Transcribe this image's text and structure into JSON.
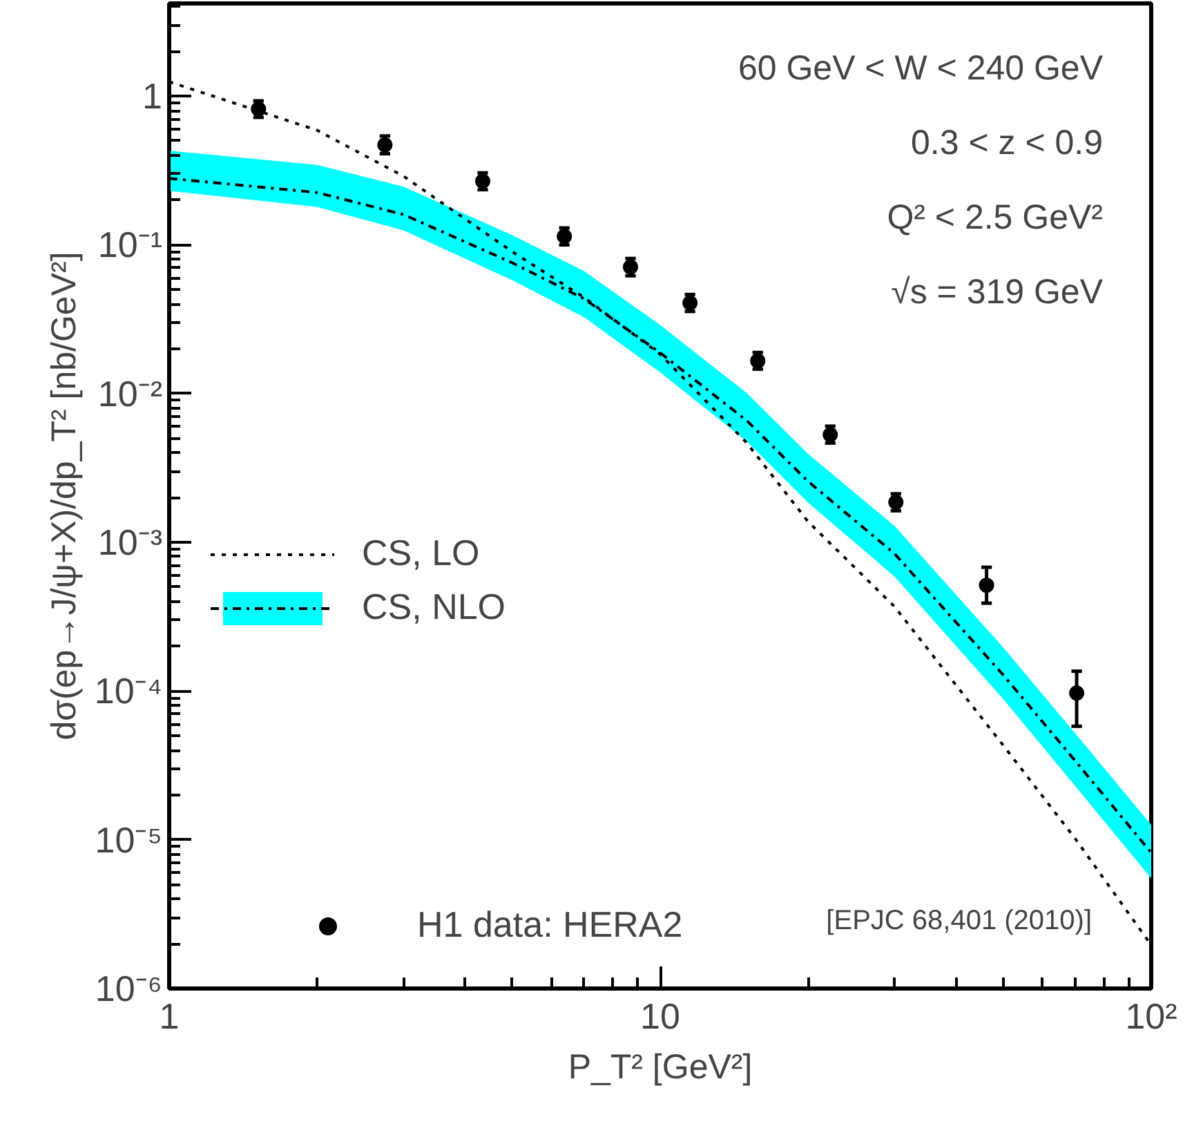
{
  "chart_data": {
    "type": "line",
    "xlabel": "P_T² [GeV²]",
    "ylabel": "dσ(ep→J/ψ+X)/dp_T² [nb/GeV²]",
    "log": "xy",
    "xlim": [
      1,
      100
    ],
    "ylim": [
      1e-06,
      4.2
    ],
    "xticks": [
      1,
      10,
      {
        "value": 100,
        "label": "10²"
      }
    ],
    "yticks": [
      {
        "value": 1e-06,
        "label": "10⁻⁶"
      },
      {
        "value": 1e-05,
        "label": "10⁻⁵"
      },
      {
        "value": 0.0001,
        "label": "10⁻⁴"
      },
      {
        "value": 0.001,
        "label": "10⁻³"
      },
      {
        "value": 0.01,
        "label": "10⁻²"
      },
      {
        "value": 0.1,
        "label": "10⁻¹"
      },
      1
    ],
    "grid": false,
    "legend": "left",
    "annotations": [
      "60 GeV < W < 240 GeV",
      "0.3 < z < 0.9",
      "Q² < 2.5 GeV²",
      "√s = 319 GeV",
      "[EPJC 68,401 (2010)]"
    ],
    "series": [
      {
        "name": "CS, LO",
        "line_style": "dotted",
        "color": "#000000",
        "x": [
          1,
          2,
          3,
          5,
          7,
          10,
          15,
          20,
          30,
          50,
          70,
          100
        ],
        "values": [
          1.25,
          0.59,
          0.29,
          0.0898,
          0.0443,
          0.0184,
          0.00468,
          0.00138,
          0.00037,
          4.3e-05,
          1.02e-05,
          1.96e-06
        ]
      },
      {
        "name": "CS, NLO",
        "line_style": "dashdot",
        "color": "#000000",
        "x": [
          1,
          2,
          3,
          5,
          7,
          10,
          15,
          20,
          30,
          50,
          70,
          100
        ],
        "values": [
          0.28,
          0.225,
          0.16,
          0.0757,
          0.0434,
          0.0188,
          0.00659,
          0.00257,
          0.00084,
          0.000128,
          3.4e-05,
          8.2e-06
        ],
        "lower": [
          0.231,
          0.18,
          0.125,
          0.0578,
          0.0326,
          0.0139,
          0.00478,
          0.00185,
          0.00059,
          8.8e-05,
          2.3e-05,
          5.5e-06
        ],
        "upper": [
          0.43,
          0.345,
          0.246,
          0.116,
          0.0666,
          0.0289,
          0.0101,
          0.00394,
          0.00129,
          0.000196,
          5.2e-05,
          1.26e-05
        ]
      },
      {
        "name": "H1 data: HERA2",
        "type": "scatter",
        "marker": "circle",
        "color": "#000000",
        "x": [
          1.52,
          2.75,
          4.35,
          6.38,
          8.7,
          11.5,
          15.8,
          22.2,
          30.2,
          46.2,
          70.5
        ],
        "values": [
          0.82,
          0.47,
          0.268,
          0.114,
          0.071,
          0.0407,
          0.0166,
          0.0053,
          0.00186,
          0.000515,
          9.7e-05
        ],
        "errors": [
          [
            0.72,
            0.93
          ],
          [
            0.41,
            0.54
          ],
          [
            0.235,
            0.305
          ],
          [
            0.1,
            0.13
          ],
          [
            0.062,
            0.081
          ],
          [
            0.0357,
            0.0464
          ],
          [
            0.0146,
            0.0189
          ],
          [
            0.00465,
            0.00604
          ],
          [
            0.00163,
            0.00212
          ],
          [
            0.00039,
            0.00068
          ],
          [
            5.8e-05,
            0.000136
          ]
        ]
      }
    ]
  }
}
